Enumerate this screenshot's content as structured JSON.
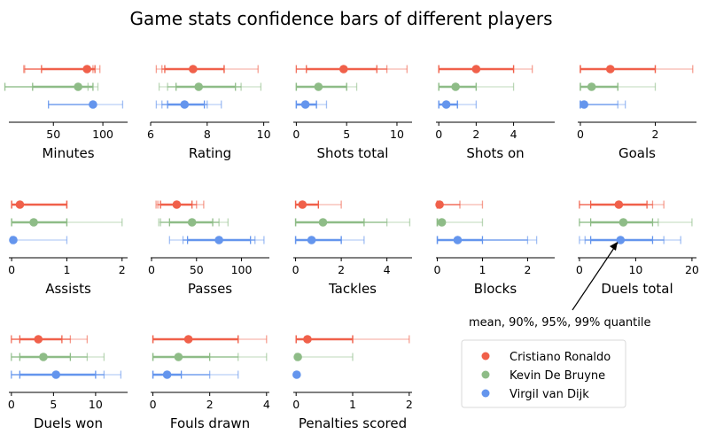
{
  "title": "Game stats confidence bars of different players",
  "annotation": "mean, 90%, 95%, 99% quantile",
  "legend": [
    {
      "name": "Cristiano Ronaldo",
      "color": "#f0604a"
    },
    {
      "name": "Kevin De Bruyne",
      "color": "#8ebc87"
    },
    {
      "name": "Virgil van Dijk",
      "color": "#6495ed"
    }
  ],
  "chart_data": [
    {
      "type": "interval",
      "xlabel": "Minutes",
      "xlim": [
        5,
        125
      ],
      "ticks": [
        50,
        100
      ],
      "series": [
        {
          "player": "Cristiano Ronaldo",
          "mean": 84,
          "q90": [
            38,
            92
          ],
          "q95": [
            21,
            90
          ],
          "q99": [
            20,
            97
          ]
        },
        {
          "player": "Kevin De Bruyne",
          "mean": 75,
          "q90": [
            29,
            90
          ],
          "q95": [
            1,
            85
          ],
          "q99": [
            1,
            95
          ]
        },
        {
          "player": "Virgil van Dijk",
          "mean": 90,
          "q90": [
            90,
            90
          ],
          "q95": [
            45,
            90
          ],
          "q99": [
            45,
            120
          ]
        }
      ]
    },
    {
      "type": "interval",
      "xlabel": "Rating",
      "xlim": [
        6,
        10.2
      ],
      "ticks": [
        6,
        8,
        10
      ],
      "series": [
        {
          "player": "Cristiano Ronaldo",
          "mean": 7.5,
          "q90": [
            6.5,
            8.6
          ],
          "q95": [
            6.4,
            8.6
          ],
          "q99": [
            6.2,
            9.8
          ]
        },
        {
          "player": "Kevin De Bruyne",
          "mean": 7.7,
          "q90": [
            6.9,
            9
          ],
          "q95": [
            6.6,
            9.2
          ],
          "q99": [
            6.3,
            9.9
          ]
        },
        {
          "player": "Virgil van Dijk",
          "mean": 7.2,
          "q90": [
            6.6,
            7.9
          ],
          "q95": [
            6.4,
            8
          ],
          "q99": [
            6.2,
            8.5
          ]
        }
      ]
    },
    {
      "type": "interval",
      "xlabel": "Shots total",
      "xlim": [
        -0.3,
        11.5
      ],
      "ticks": [
        0,
        5,
        10
      ],
      "series": [
        {
          "player": "Cristiano Ronaldo",
          "mean": 4.7,
          "q90": [
            1,
            8
          ],
          "q95": [
            0,
            9
          ],
          "q99": [
            0,
            11
          ]
        },
        {
          "player": "Kevin De Bruyne",
          "mean": 2.2,
          "q90": [
            0,
            5
          ],
          "q95": [
            0,
            5
          ],
          "q99": [
            0,
            6
          ]
        },
        {
          "player": "Virgil van Dijk",
          "mean": 0.9,
          "q90": [
            0,
            2
          ],
          "q95": [
            0,
            2
          ],
          "q99": [
            0,
            3
          ]
        }
      ]
    },
    {
      "type": "interval",
      "xlabel": "Shots on",
      "xlim": [
        -0.15,
        6.2
      ],
      "ticks": [
        0,
        2,
        4
      ],
      "series": [
        {
          "player": "Cristiano Ronaldo",
          "mean": 2,
          "q90": [
            0,
            4
          ],
          "q95": [
            0,
            4
          ],
          "q99": [
            0,
            5
          ]
        },
        {
          "player": "Kevin De Bruyne",
          "mean": 0.9,
          "q90": [
            0,
            2
          ],
          "q95": [
            0,
            2
          ],
          "q99": [
            0,
            4
          ]
        },
        {
          "player": "Virgil van Dijk",
          "mean": 0.4,
          "q90": [
            0,
            1
          ],
          "q95": [
            0,
            1
          ],
          "q99": [
            0,
            2
          ]
        }
      ]
    },
    {
      "type": "interval",
      "xlabel": "Goals",
      "xlim": [
        -0.07,
        3.1
      ],
      "ticks": [
        0,
        2
      ],
      "series": [
        {
          "player": "Cristiano Ronaldo",
          "mean": 0.8,
          "q90": [
            0,
            2
          ],
          "q95": [
            0,
            2
          ],
          "q99": [
            0,
            3
          ]
        },
        {
          "player": "Kevin De Bruyne",
          "mean": 0.3,
          "q90": [
            0,
            1
          ],
          "q95": [
            0,
            1
          ],
          "q99": [
            0,
            2
          ]
        },
        {
          "player": "Virgil van Dijk",
          "mean": 0.1,
          "q90": [
            0,
            0
          ],
          "q95": [
            0,
            1
          ],
          "q99": [
            0,
            1.2
          ]
        }
      ]
    },
    {
      "type": "interval",
      "xlabel": "Assists",
      "xlim": [
        -0.05,
        2.1
      ],
      "ticks": [
        0,
        1,
        2
      ],
      "series": [
        {
          "player": "Cristiano Ronaldo",
          "mean": 0.15,
          "q90": [
            0,
            1
          ],
          "q95": [
            0,
            1
          ],
          "q99": [
            0,
            1
          ]
        },
        {
          "player": "Kevin De Bruyne",
          "mean": 0.4,
          "q90": [
            0,
            1
          ],
          "q95": [
            0,
            1
          ],
          "q99": [
            0,
            2
          ]
        },
        {
          "player": "Virgil van Dijk",
          "mean": 0.03,
          "q90": [
            0,
            0
          ],
          "q95": [
            0,
            0
          ],
          "q99": [
            0,
            1
          ]
        }
      ]
    },
    {
      "type": "interval",
      "xlabel": "Passes",
      "xlim": [
        -1,
        131
      ],
      "ticks": [
        0,
        50,
        100
      ],
      "series": [
        {
          "player": "Cristiano Ronaldo",
          "mean": 28,
          "q90": [
            10,
            45
          ],
          "q95": [
            7,
            50
          ],
          "q99": [
            5,
            58
          ]
        },
        {
          "player": "Kevin De Bruyne",
          "mean": 45,
          "q90": [
            20,
            68
          ],
          "q95": [
            10,
            75
          ],
          "q99": [
            8,
            85
          ]
        },
        {
          "player": "Virgil van Dijk",
          "mean": 75,
          "q90": [
            40,
            110
          ],
          "q95": [
            35,
            115
          ],
          "q99": [
            20,
            125
          ]
        }
      ]
    },
    {
      "type": "interval",
      "xlabel": "Tackles",
      "xlim": [
        -0.1,
        5.1
      ],
      "ticks": [
        0,
        2,
        4
      ],
      "series": [
        {
          "player": "Cristiano Ronaldo",
          "mean": 0.3,
          "q90": [
            0,
            1
          ],
          "q95": [
            0,
            1
          ],
          "q99": [
            0,
            2
          ]
        },
        {
          "player": "Kevin De Bruyne",
          "mean": 1.2,
          "q90": [
            0,
            3
          ],
          "q95": [
            0,
            4
          ],
          "q99": [
            0,
            5
          ]
        },
        {
          "player": "Virgil van Dijk",
          "mean": 0.7,
          "q90": [
            0,
            2
          ],
          "q95": [
            0,
            2
          ],
          "q99": [
            0,
            3
          ]
        }
      ]
    },
    {
      "type": "interval",
      "xlabel": "Blocks",
      "xlim": [
        -0.03,
        2.6
      ],
      "ticks": [
        0,
        1,
        2
      ],
      "series": [
        {
          "player": "Cristiano Ronaldo",
          "mean": 0.05,
          "q90": [
            0,
            0
          ],
          "q95": [
            0,
            0.5
          ],
          "q99": [
            0,
            1
          ]
        },
        {
          "player": "Kevin De Bruyne",
          "mean": 0.1,
          "q90": [
            0,
            0
          ],
          "q95": [
            0,
            0
          ],
          "q99": [
            0,
            1
          ]
        },
        {
          "player": "Virgil van Dijk",
          "mean": 0.45,
          "q90": [
            0,
            1
          ],
          "q95": [
            0,
            2
          ],
          "q99": [
            0,
            2.2
          ]
        }
      ]
    },
    {
      "type": "interval",
      "xlabel": "Duels total",
      "xlim": [
        -0.3,
        20.8
      ],
      "ticks": [
        0,
        10,
        20
      ],
      "series": [
        {
          "player": "Cristiano Ronaldo",
          "mean": 7,
          "q90": [
            2,
            12
          ],
          "q95": [
            0,
            13
          ],
          "q99": [
            0,
            15
          ]
        },
        {
          "player": "Kevin De Bruyne",
          "mean": 7.8,
          "q90": [
            2,
            13
          ],
          "q95": [
            0,
            14
          ],
          "q99": [
            0,
            20
          ]
        },
        {
          "player": "Virgil van Dijk",
          "mean": 7.3,
          "q90": [
            2,
            13
          ],
          "q95": [
            1,
            15
          ],
          "q99": [
            0,
            18
          ]
        }
      ]
    },
    {
      "type": "interval",
      "xlabel": "Duels won",
      "xlim": [
        -0.3,
        13.8
      ],
      "ticks": [
        0,
        5,
        10
      ],
      "series": [
        {
          "player": "Cristiano Ronaldo",
          "mean": 3.2,
          "q90": [
            1,
            6
          ],
          "q95": [
            0,
            7
          ],
          "q99": [
            0,
            9
          ]
        },
        {
          "player": "Kevin De Bruyne",
          "mean": 3.8,
          "q90": [
            1,
            7
          ],
          "q95": [
            0,
            9
          ],
          "q99": [
            0,
            11
          ]
        },
        {
          "player": "Virgil van Dijk",
          "mean": 5.3,
          "q90": [
            1,
            10
          ],
          "q95": [
            0,
            11
          ],
          "q99": [
            0,
            13
          ]
        }
      ]
    },
    {
      "type": "interval",
      "xlabel": "Fouls drawn",
      "xlim": [
        -0.08,
        4.1
      ],
      "ticks": [
        0,
        2,
        4
      ],
      "series": [
        {
          "player": "Cristiano Ronaldo",
          "mean": 1.25,
          "q90": [
            0,
            3
          ],
          "q95": [
            0,
            3
          ],
          "q99": [
            0,
            4
          ]
        },
        {
          "player": "Kevin De Bruyne",
          "mean": 0.9,
          "q90": [
            0,
            2
          ],
          "q95": [
            0,
            3
          ],
          "q99": [
            0,
            4
          ]
        },
        {
          "player": "Virgil van Dijk",
          "mean": 0.5,
          "q90": [
            0,
            1
          ],
          "q95": [
            0,
            2
          ],
          "q99": [
            0,
            3
          ]
        }
      ]
    },
    {
      "type": "interval",
      "xlabel": "Penalties scored",
      "xlim": [
        -0.05,
        2.05
      ],
      "ticks": [
        0,
        1,
        2
      ],
      "series": [
        {
          "player": "Cristiano Ronaldo",
          "mean": 0.2,
          "q90": [
            0,
            1
          ],
          "q95": [
            0,
            1
          ],
          "q99": [
            0,
            2
          ]
        },
        {
          "player": "Kevin De Bruyne",
          "mean": 0.03,
          "q90": [
            0,
            0
          ],
          "q95": [
            0,
            0
          ],
          "q99": [
            0,
            1
          ]
        },
        {
          "player": "Virgil van Dijk",
          "mean": 0.01,
          "q90": [
            0,
            0
          ],
          "q95": [
            0,
            0
          ],
          "q99": [
            0,
            0
          ]
        }
      ]
    }
  ]
}
